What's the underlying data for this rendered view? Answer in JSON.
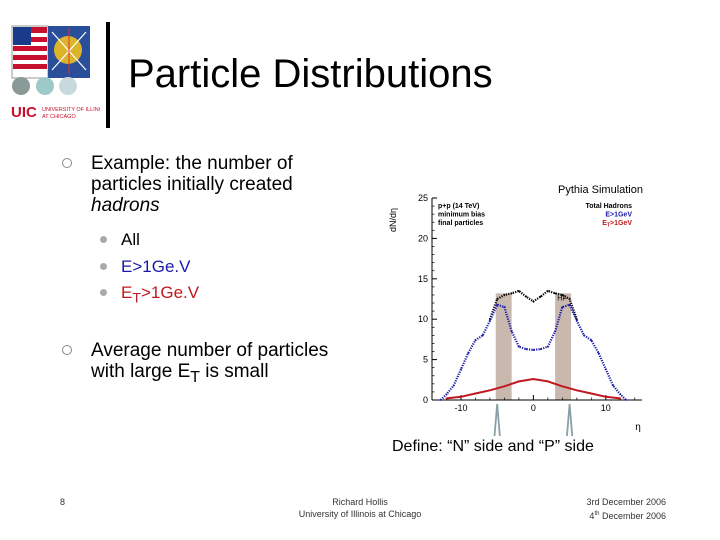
{
  "slide": {
    "title": "Particle Distributions",
    "bullet1": {
      "lead": "Example: the number of particles initially created ",
      "emph": "hadrons"
    },
    "subitems": [
      {
        "label": "All",
        "color": "#000000"
      },
      {
        "label": "E>1Ge.V",
        "color": "#1a1aa6"
      },
      {
        "label_main": "E",
        "label_sub": "T",
        "label_tail": ">1Ge.V",
        "color": "#c0181e"
      }
    ],
    "bullet2": {
      "lead": "Average number of particles with large E",
      "sub": "T",
      "tail": " is small"
    },
    "define": "Define: “N” side and “P” side",
    "footer": {
      "page": "8",
      "author_line1": "Richard Hollis",
      "author_line2": "University of Illinois at Chicago",
      "date1": "3rd December 2006",
      "date2_num": "4",
      "date2_sup": "th",
      "date2_rest": " December 2006"
    },
    "logo": {
      "text_main": "UIC",
      "text_side_1": "UNIVERSITY OF ILLINOIS",
      "text_side_2": "AT CHICAGO"
    }
  },
  "chart_data": {
    "type": "line",
    "title": "Pythia Simulation",
    "ylabel": "dN/dη",
    "xlabel": "η",
    "xlim": [
      -14,
      15
    ],
    "ylim": [
      0,
      25
    ],
    "xticks": [
      "-10",
      "0",
      "10"
    ],
    "yticks": [
      "0",
      "5",
      "10",
      "15",
      "20",
      "25"
    ],
    "info_text": [
      "p+p (14 TeV)",
      "minimum bias",
      "final particles"
    ],
    "legend": {
      "items": [
        {
          "label": "Total Hadrons",
          "color": "#000000"
        },
        {
          "label": "E>1GeV",
          "color": "#1a1aa6"
        },
        {
          "label_main": "E",
          "label_sub": "T",
          "label_tail": ">1GeV",
          "color": "#c0181e"
        }
      ]
    },
    "hf_label": "HF",
    "hf_bands": [
      [
        -5.2,
        -3.0
      ],
      [
        3.0,
        5.2
      ]
    ],
    "series": [
      {
        "name": "Total Hadrons",
        "color": "#000000",
        "style": "dotted",
        "points": [
          [
            -6.0,
            10.0
          ],
          [
            -5.0,
            12.5
          ],
          [
            -4.0,
            13.0
          ],
          [
            -3.0,
            13.2
          ],
          [
            -2.0,
            13.5
          ],
          [
            -1.0,
            12.8
          ],
          [
            0.0,
            12.2
          ],
          [
            1.0,
            12.8
          ],
          [
            2.0,
            13.5
          ],
          [
            3.0,
            13.2
          ],
          [
            4.0,
            13.0
          ],
          [
            5.0,
            12.5
          ],
          [
            6.0,
            10.0
          ]
        ]
      },
      {
        "name": "E>1GeV",
        "color": "#1a1aa6",
        "style": "dotted",
        "points": [
          [
            -12.8,
            0.0
          ],
          [
            -12.0,
            0.7
          ],
          [
            -11.0,
            1.8
          ],
          [
            -10.0,
            3.8
          ],
          [
            -9.0,
            5.8
          ],
          [
            -8.0,
            7.4
          ],
          [
            -7.0,
            8.0
          ],
          [
            -6.0,
            9.8
          ],
          [
            -5.0,
            11.8
          ],
          [
            -4.0,
            11.5
          ],
          [
            -3.0,
            8.5
          ],
          [
            -2.0,
            6.6
          ],
          [
            -1.0,
            6.3
          ],
          [
            0.0,
            6.2
          ],
          [
            1.0,
            6.3
          ],
          [
            2.0,
            6.6
          ],
          [
            3.0,
            8.5
          ],
          [
            4.0,
            11.5
          ],
          [
            5.0,
            11.8
          ],
          [
            6.0,
            9.8
          ],
          [
            7.0,
            8.0
          ],
          [
            8.0,
            7.4
          ],
          [
            9.0,
            5.8
          ],
          [
            10.0,
            3.8
          ],
          [
            11.0,
            1.8
          ],
          [
            12.0,
            0.7
          ],
          [
            12.8,
            0.0
          ]
        ]
      },
      {
        "name": "ET>1GeV",
        "color": "#c0181e",
        "style": "solid",
        "points": [
          [
            -12.0,
            0.2
          ],
          [
            -10.0,
            0.4
          ],
          [
            -8.0,
            0.8
          ],
          [
            -6.0,
            1.2
          ],
          [
            -4.0,
            1.7
          ],
          [
            -2.0,
            2.3
          ],
          [
            0.0,
            2.6
          ],
          [
            2.0,
            2.3
          ],
          [
            4.0,
            1.7
          ],
          [
            6.0,
            1.2
          ],
          [
            8.0,
            0.8
          ],
          [
            10.0,
            0.4
          ],
          [
            12.0,
            0.2
          ]
        ]
      }
    ],
    "arrows_at": [
      -5,
      5
    ]
  }
}
